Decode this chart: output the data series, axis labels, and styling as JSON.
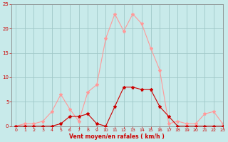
{
  "x": [
    0,
    1,
    2,
    3,
    4,
    5,
    6,
    7,
    8,
    9,
    10,
    11,
    12,
    13,
    14,
    15,
    16,
    17,
    18,
    19,
    20,
    21,
    22,
    23
  ],
  "line_dark_y": [
    0,
    0,
    0,
    0,
    0,
    0.5,
    2,
    2,
    2.5,
    0.5,
    0,
    4,
    8,
    8,
    7.5,
    7.5,
    4,
    2,
    0,
    0,
    0,
    0,
    0,
    0
  ],
  "line_light_y": [
    0,
    0.5,
    0.5,
    1,
    3,
    6.5,
    3.5,
    1,
    7,
    8.5,
    18,
    23,
    19.5,
    23,
    21,
    16,
    11.5,
    0.5,
    1,
    0.5,
    0.5,
    2.5,
    3,
    0.5
  ],
  "bg_color": "#c8eaea",
  "grid_color": "#a0c8c8",
  "line_dark_color": "#cc0000",
  "line_light_color": "#ff9999",
  "xlabel": "Vent moyen/en rafales ( km/h )",
  "xlabel_color": "#cc0000",
  "tick_color": "#cc0000",
  "spine_color": "#888888",
  "ylim": [
    0,
    25
  ],
  "xlim": [
    -0.5,
    23
  ],
  "yticks": [
    0,
    5,
    10,
    15,
    20,
    25
  ],
  "xticks": [
    0,
    1,
    2,
    3,
    4,
    5,
    6,
    7,
    8,
    9,
    10,
    11,
    12,
    13,
    14,
    15,
    16,
    17,
    18,
    19,
    20,
    21,
    22,
    23
  ]
}
